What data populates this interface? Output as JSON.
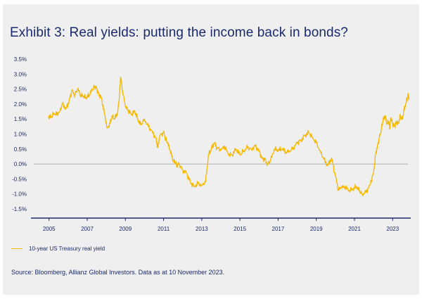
{
  "title": "Exhibit 3: Real yields: putting the income back in bonds?",
  "source": "Source: Bloomberg, Allianz Global Investors. Data as at 10 November 2023.",
  "colors": {
    "line": "#f5b800",
    "text": "#1a2a6c",
    "axis": "#1a2a6c",
    "zero_line": "#999999",
    "background": "#efefef"
  },
  "chart_data": {
    "type": "line",
    "title": "Exhibit 3: Real yields: putting the income back in bonds?",
    "xlabel": "",
    "ylabel": "",
    "xlim": [
      2004.2,
      2023.8
    ],
    "ylim": [
      -1.5,
      3.5
    ],
    "grid": false,
    "legend_placement": "bottom-left",
    "x_ticks": [
      2005,
      2007,
      2009,
      2011,
      2013,
      2015,
      2017,
      2019,
      2021,
      2023
    ],
    "x_tick_labels": [
      "2005",
      "2007",
      "2009",
      "2011",
      "2013",
      "2015",
      "2017",
      "2019",
      "2021",
      "2023"
    ],
    "y_ticks": [
      3.5,
      3.0,
      2.5,
      2.0,
      1.5,
      1.0,
      0.5,
      0.0,
      -0.5,
      -1.0,
      -1.5
    ],
    "y_tick_labels": [
      "3.5%",
      "3.0%",
      "2.5%",
      "2.0%",
      "1.5%",
      "1.0%",
      "0.5%",
      "0.0%",
      "-0.5%",
      "-1.0%",
      "-1.5%"
    ],
    "series": [
      {
        "name": "10-year US Treasury real yield",
        "color": "#f5b800",
        "x": [
          2004.95,
          2005.1,
          2005.25,
          2005.4,
          2005.55,
          2005.7,
          2005.9,
          2006.05,
          2006.2,
          2006.35,
          2006.5,
          2006.65,
          2006.8,
          2006.95,
          2007.1,
          2007.25,
          2007.4,
          2007.5,
          2007.6,
          2007.75,
          2007.9,
          2008.05,
          2008.2,
          2008.3,
          2008.45,
          2008.6,
          2008.68,
          2008.75,
          2008.85,
          2009.0,
          2009.15,
          2009.3,
          2009.5,
          2009.65,
          2009.8,
          2010.0,
          2010.2,
          2010.4,
          2010.6,
          2010.7,
          2010.8,
          2011.0,
          2011.1,
          2011.2,
          2011.35,
          2011.5,
          2011.6,
          2011.7,
          2011.8,
          2012.0,
          2012.2,
          2012.4,
          2012.6,
          2012.8,
          2013.0,
          2013.2,
          2013.35,
          2013.5,
          2013.65,
          2013.8,
          2014.0,
          2014.2,
          2014.4,
          2014.6,
          2014.8,
          2015.0,
          2015.2,
          2015.4,
          2015.6,
          2015.8,
          2016.0,
          2016.15,
          2016.3,
          2016.45,
          2016.6,
          2016.8,
          2017.0,
          2017.2,
          2017.4,
          2017.6,
          2017.8,
          2018.0,
          2018.2,
          2018.4,
          2018.6,
          2018.8,
          2019.0,
          2019.2,
          2019.4,
          2019.6,
          2019.8,
          2020.0,
          2020.15,
          2020.3,
          2020.5,
          2020.7,
          2020.9,
          2021.1,
          2021.25,
          2021.4,
          2021.6,
          2021.8,
          2022.0,
          2022.1,
          2022.2,
          2022.3,
          2022.4,
          2022.5,
          2022.6,
          2022.7,
          2022.8,
          2022.85,
          2022.9,
          2023.0,
          2023.1,
          2023.2,
          2023.3,
          2023.4,
          2023.5,
          2023.6,
          2023.7,
          2023.8,
          2023.86
        ],
        "values": [
          1.6,
          1.55,
          1.7,
          1.65,
          1.75,
          2.0,
          1.85,
          2.1,
          2.45,
          2.3,
          2.5,
          2.3,
          2.25,
          2.2,
          2.3,
          2.45,
          2.6,
          2.5,
          2.35,
          2.2,
          1.7,
          1.2,
          1.35,
          1.6,
          1.5,
          1.75,
          2.2,
          2.9,
          2.45,
          1.9,
          1.8,
          1.65,
          1.75,
          1.5,
          1.3,
          1.5,
          1.25,
          1.1,
          0.85,
          0.55,
          0.95,
          1.05,
          0.85,
          0.7,
          0.45,
          0.1,
          0.05,
          -0.05,
          0.0,
          -0.2,
          -0.3,
          -0.6,
          -0.75,
          -0.65,
          -0.7,
          -0.6,
          0.3,
          0.5,
          0.7,
          0.55,
          0.45,
          0.6,
          0.3,
          0.3,
          0.5,
          0.3,
          0.45,
          0.55,
          0.5,
          0.6,
          0.45,
          0.2,
          0.15,
          0.0,
          0.1,
          0.5,
          0.45,
          0.5,
          0.4,
          0.4,
          0.55,
          0.7,
          0.8,
          0.95,
          1.05,
          0.9,
          0.7,
          0.45,
          0.15,
          -0.05,
          0.2,
          -0.4,
          -0.85,
          -0.8,
          -0.75,
          -0.9,
          -0.85,
          -0.75,
          -0.9,
          -1.0,
          -0.95,
          -0.7,
          -0.3,
          0.3,
          0.6,
          0.85,
          1.15,
          1.45,
          1.6,
          1.35,
          1.4,
          1.2,
          1.55,
          1.35,
          1.25,
          1.4,
          1.35,
          1.6,
          1.5,
          1.8,
          2.05,
          2.3,
          2.2
        ]
      }
    ]
  }
}
